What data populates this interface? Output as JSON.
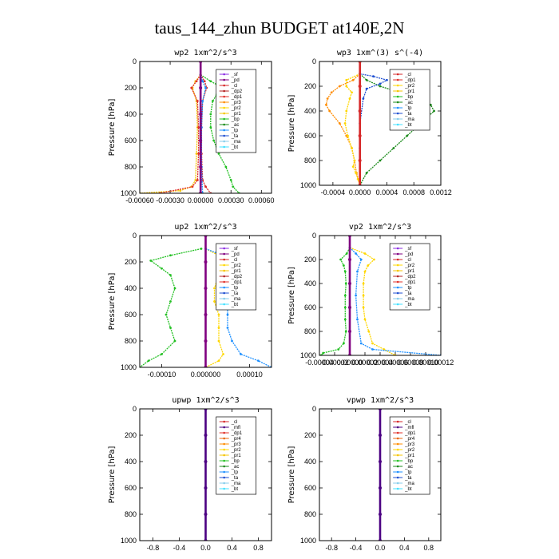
{
  "title": "taus_144_zhun  BUDGET at140E,2N",
  "colors": {
    "sf": "#8a2be2",
    "pd": "#800080",
    "cl": "#d62728",
    "dp2": "#b22222",
    "dp1": "#e0302a",
    "pr3": "#ff8c00",
    "pr2": "#ffd700",
    "pr1": "#f5c400",
    "pr4": "#e8650a",
    "bp": "#22c022",
    "ac": "#1a8a1a",
    "tp": "#1e90ff",
    "ta": "#1f4fd1",
    "ma": "#87ceeb",
    "bt": "#40e0ff",
    "mfl": "#4b0082"
  },
  "chart_data": [
    {
      "type": "line",
      "title": "wp2  1xm^2/s^3",
      "ylabel": "Pressure  [hPa]",
      "ylim": [
        1000,
        0
      ],
      "xlim": [
        -0.0006,
        0.0007
      ],
      "yticks": [
        "0",
        "200",
        "400",
        "600",
        "800",
        "1000"
      ],
      "xticks": [
        {
          "v": -0.0006,
          "label": "-0.00060"
        },
        {
          "v": -0.0003,
          "label": "-0.00030"
        },
        {
          "v": 0,
          "label": "0.00000"
        },
        {
          "v": 0.0003,
          "label": "0.00030"
        },
        {
          "v": 0.0006,
          "label": "0.00060"
        }
      ],
      "legend": [
        "_sf",
        "_pd",
        "_cl",
        "_dp2",
        "_dp1",
        "_pr3",
        "_pr2",
        "_pr1",
        "_bp",
        "_ac",
        "_tp",
        "_ta",
        "_ma",
        "_bt"
      ],
      "series": [
        {
          "key": "bp",
          "name": "_bp",
          "p": [
            100,
            150,
            200,
            250,
            300,
            400,
            500,
            600,
            700,
            800,
            900,
            950,
            1000
          ],
          "x": [
            0,
            0.0001,
            0.00022,
            0.00016,
            0.00012,
            0.0001,
            0.0001,
            0.00013,
            0.00018,
            0.00025,
            0.0003,
            0.00032,
            0.00038
          ]
        },
        {
          "key": "pr1",
          "name": "_pr1",
          "p": [
            100,
            150,
            200,
            300,
            500,
            700,
            900,
            950,
            980,
            1000
          ],
          "x": [
            0,
            -5e-05,
            -8e-05,
            -4e-05,
            -3e-05,
            -4e-05,
            -5e-05,
            -9e-05,
            -0.0002,
            -0.0006
          ]
        },
        {
          "key": "dp1",
          "name": "_dp1",
          "p": [
            100,
            150,
            200,
            300,
            500,
            700,
            900,
            950,
            1000
          ],
          "x": [
            0,
            -4e-05,
            -9e-05,
            -3e-05,
            -2e-05,
            -2e-05,
            -3e-05,
            -8e-05,
            -0.0004
          ]
        },
        {
          "key": "cl",
          "name": "_cl",
          "p": [
            100,
            150,
            200,
            300,
            500,
            700,
            900,
            950,
            1000
          ],
          "x": [
            0,
            4e-05,
            6e-05,
            2e-05,
            1e-05,
            1e-05,
            2e-05,
            5e-05,
            0.0001
          ]
        },
        {
          "key": "tp",
          "name": "_tp",
          "p": [
            100,
            150,
            200,
            300,
            500,
            800,
            1000
          ],
          "x": [
            0,
            2e-05,
            5e-05,
            2e-05,
            1e-05,
            1e-05,
            2e-05
          ]
        },
        {
          "key": "pd",
          "name": "_pd",
          "p": [
            0,
            200,
            400,
            600,
            800,
            1000
          ],
          "x": [
            0,
            0,
            0,
            0,
            0,
            0
          ]
        }
      ]
    },
    {
      "type": "line",
      "title": "wp3  1xm^(3) s^(-4)",
      "ylabel": "Pressure  [hPa]",
      "ylim": [
        1000,
        0
      ],
      "xlim": [
        -0.0006,
        0.0012
      ],
      "yticks": [
        "0",
        "200",
        "400",
        "600",
        "800",
        "1000"
      ],
      "xticks": [
        {
          "v": -0.0004,
          "label": "-0.0004"
        },
        {
          "v": 0,
          "label": "0.0000"
        },
        {
          "v": 0.0004,
          "label": "0.0004"
        },
        {
          "v": 0.0008,
          "label": "0.0008"
        },
        {
          "v": 0.0012,
          "label": "0.0012"
        }
      ],
      "legend": [
        "_cl",
        "_dp1",
        "_pr2",
        "_pr1",
        "_bp",
        "_ac",
        "_tp",
        "_ta",
        "_ma",
        "_bt"
      ],
      "series": [
        {
          "key": "ac",
          "name": "_ac",
          "p": [
            100,
            150,
            200,
            250,
            300,
            350,
            400,
            450,
            500,
            600,
            700,
            800,
            900,
            1000
          ],
          "x": [
            0,
            0.0001,
            0.0003,
            0.0006,
            0.0009,
            0.00105,
            0.0011,
            0.001,
            0.0009,
            0.0007,
            0.0005,
            0.0003,
            0.0001,
            0
          ]
        },
        {
          "key": "pr3",
          "name": "_pr3",
          "p": [
            100,
            150,
            200,
            250,
            300,
            350,
            400,
            500,
            600,
            700,
            800,
            900,
            1000
          ],
          "x": [
            0,
            -0.0001,
            -0.0003,
            -0.00042,
            -0.00048,
            -0.0005,
            -0.00045,
            -0.0003,
            -0.0002,
            -0.00012,
            -8e-05,
            -5e-05,
            0
          ]
        },
        {
          "key": "pr2",
          "name": "_pr2",
          "p": [
            100,
            150,
            200,
            250,
            300,
            400,
            500,
            600,
            700,
            800,
            850,
            900,
            950,
            1000
          ],
          "x": [
            0,
            -0.0002,
            -0.0002,
            -0.00012,
            -0.00015,
            -0.0002,
            -0.00022,
            -0.00018,
            -0.00012,
            -8e-05,
            -0.0001,
            -6e-05,
            -3e-05,
            0
          ]
        },
        {
          "key": "ta",
          "name": "_ta",
          "p": [
            100,
            120,
            150,
            180,
            220,
            300,
            500,
            700,
            1000
          ],
          "x": [
            0,
            0.0002,
            0.0004,
            0.0003,
            0.0001,
            5e-05,
            0,
            0,
            0
          ]
        },
        {
          "key": "cl",
          "name": "_cl",
          "p": [
            0,
            200,
            400,
            600,
            800,
            1000
          ],
          "x": [
            0,
            0,
            0,
            0,
            0,
            0
          ]
        }
      ]
    },
    {
      "type": "line",
      "title": "up2  1xm^2/s^3",
      "ylabel": "Pressure  [hPa]",
      "ylim": [
        1000,
        0
      ],
      "xlim": [
        -0.00015,
        0.00015
      ],
      "yticks": [
        "0",
        "200",
        "400",
        "600",
        "800",
        "1000"
      ],
      "xticks": [
        {
          "v": -0.0001,
          "label": "-0.00010"
        },
        {
          "v": 0,
          "label": "0.000000"
        },
        {
          "v": 0.0001,
          "label": "0.00010"
        }
      ],
      "legend": [
        "_sf",
        "_pd",
        "_cl",
        "_pr2",
        "_pr1",
        "_dp2",
        "_dp1",
        "_tp",
        "_ta",
        "_ma",
        "_bt"
      ],
      "series": [
        {
          "key": "bp",
          "name": "_bp",
          "p": [
            100,
            150,
            190,
            250,
            300,
            400,
            500,
            600,
            700,
            800,
            900,
            950,
            1000
          ],
          "x": [
            -1e-05,
            -8e-05,
            -0.000125,
            -0.0001,
            -8e-05,
            -7e-05,
            -8e-05,
            -9e-05,
            -8e-05,
            -7e-05,
            -0.0001,
            -0.00013,
            -0.00015
          ]
        },
        {
          "key": "pr2",
          "name": "_pr2",
          "p": [
            100,
            150,
            200,
            250,
            300,
            400,
            500,
            600,
            700,
            800,
            900,
            950,
            1000
          ],
          "x": [
            0,
            3e-05,
            4e-05,
            3e-05,
            3e-05,
            2e-05,
            2e-05,
            3e-05,
            3e-05,
            3e-05,
            4e-05,
            3e-05,
            0
          ]
        },
        {
          "key": "tp",
          "name": "_tp",
          "p": [
            100,
            150,
            200,
            250,
            300,
            400,
            500,
            600,
            700,
            800,
            900,
            950,
            1000
          ],
          "x": [
            0,
            4e-05,
            8e-05,
            5e-05,
            4e-05,
            4e-05,
            5e-05,
            5e-05,
            5e-05,
            6e-05,
            8e-05,
            0.00012,
            0.00015
          ]
        },
        {
          "key": "pd",
          "name": "_pd",
          "p": [
            0,
            200,
            400,
            600,
            800,
            1000
          ],
          "x": [
            0,
            0,
            0,
            0,
            0,
            0
          ]
        }
      ]
    },
    {
      "type": "line",
      "title": "vp2  1xm^2/s^3",
      "ylabel": "Pressure  [hPa]",
      "ylim": [
        1000,
        0
      ],
      "xlim": [
        -4e-05,
        0.00012
      ],
      "yticks": [
        "0",
        "200",
        "400",
        "600",
        "800",
        "1000"
      ],
      "xticks": [
        {
          "v": -4e-05,
          "label": "-0.00004"
        },
        {
          "v": -2e-05,
          "label": "-0.00002"
        },
        {
          "v": 0,
          "label": "0.00000"
        },
        {
          "v": 2e-05,
          "label": "0.00002"
        },
        {
          "v": 4e-05,
          "label": "0.00004"
        },
        {
          "v": 6e-05,
          "label": "0.00006"
        },
        {
          "v": 8e-05,
          "label": "0.00008"
        },
        {
          "v": 0.0001,
          "label": "0.00010"
        },
        {
          "v": 0.00012,
          "label": "0.00012"
        }
      ],
      "legend": [
        "_sf",
        "_pd",
        "_cl",
        "_pr2",
        "_pr1",
        "_dp2",
        "_dp1",
        "_tp",
        "_ta",
        "_ma",
        "_bt"
      ],
      "series": [
        {
          "key": "bp",
          "name": "_bp",
          "p": [
            100,
            150,
            200,
            250,
            300,
            400,
            500,
            600,
            700,
            800,
            900,
            950,
            980,
            1000
          ],
          "x": [
            0,
            -4e-06,
            -1.2e-05,
            -8e-06,
            -6e-06,
            -5e-06,
            -6e-06,
            -6e-06,
            -6e-06,
            -5e-06,
            -8e-06,
            -1.5e-05,
            -3.5e-05,
            -3.8e-05
          ]
        },
        {
          "key": "pr2",
          "name": "_pr2",
          "p": [
            100,
            150,
            200,
            250,
            300,
            400,
            500,
            600,
            700,
            800,
            900,
            950,
            1000
          ],
          "x": [
            0,
            2e-05,
            3.2e-05,
            2.4e-05,
            2e-05,
            1.8e-05,
            1.8e-05,
            1.8e-05,
            2e-05,
            2.5e-05,
            3e-05,
            4.5e-05,
            6e-05
          ]
        },
        {
          "key": "tp",
          "name": "_tp",
          "p": [
            100,
            150,
            200,
            300,
            500,
            700,
            900,
            950,
            1000
          ],
          "x": [
            0,
            8e-06,
            1.5e-05,
            1e-05,
            8e-06,
            1e-05,
            1.5e-05,
            3e-05,
            0.00012
          ]
        },
        {
          "key": "pd",
          "name": "_pd",
          "p": [
            0,
            200,
            400,
            600,
            800,
            1000
          ],
          "x": [
            0,
            0,
            0,
            0,
            0,
            0
          ]
        }
      ]
    },
    {
      "type": "line",
      "title": "upwp  1xm^2/s^3",
      "ylabel": "Pressure  [hPa]",
      "ylim": [
        1000,
        0
      ],
      "xlim": [
        -1,
        1
      ],
      "yticks": [
        "0",
        "200",
        "400",
        "600",
        "800",
        "1000"
      ],
      "xticks": [
        {
          "v": -0.8,
          "label": "-0.8"
        },
        {
          "v": -0.4,
          "label": "-0.4"
        },
        {
          "v": 0,
          "label": "0.0"
        },
        {
          "v": 0.4,
          "label": "0.4"
        },
        {
          "v": 0.8,
          "label": "0.8"
        }
      ],
      "legend": [
        "_cl",
        "_mfl",
        "_dp1",
        "_pr4",
        "_pr3",
        "_pr2",
        "_pr1",
        "_bp",
        "_ac",
        "_tp",
        "_ta",
        "_ma",
        "_bt"
      ],
      "series": [
        {
          "key": "mfl",
          "name": "_mfl",
          "p": [
            0,
            200,
            400,
            600,
            800,
            1000
          ],
          "x": [
            0,
            0,
            0,
            0,
            0,
            0
          ]
        }
      ]
    },
    {
      "type": "line",
      "title": "vpwp  1xm^2/s^3",
      "ylabel": "Pressure  [hPa]",
      "ylim": [
        1000,
        0
      ],
      "xlim": [
        -1,
        1
      ],
      "yticks": [
        "0",
        "200",
        "400",
        "600",
        "800",
        "1000"
      ],
      "xticks": [
        {
          "v": -0.8,
          "label": "-0.8"
        },
        {
          "v": -0.4,
          "label": "-0.4"
        },
        {
          "v": 0,
          "label": "0.0"
        },
        {
          "v": 0.4,
          "label": "0.4"
        },
        {
          "v": 0.8,
          "label": "0.8"
        }
      ],
      "legend": [
        "_cl",
        "_mfl",
        "_dp1",
        "_pr4",
        "_pr3",
        "_pr2",
        "_pr1",
        "_bp",
        "_ac",
        "_tp",
        "_ta",
        "_ma",
        "_bt"
      ],
      "series": [
        {
          "key": "mfl",
          "name": "_mfl",
          "p": [
            0,
            200,
            400,
            600,
            800,
            1000
          ],
          "x": [
            0,
            0,
            0,
            0,
            0,
            0
          ]
        }
      ]
    }
  ]
}
